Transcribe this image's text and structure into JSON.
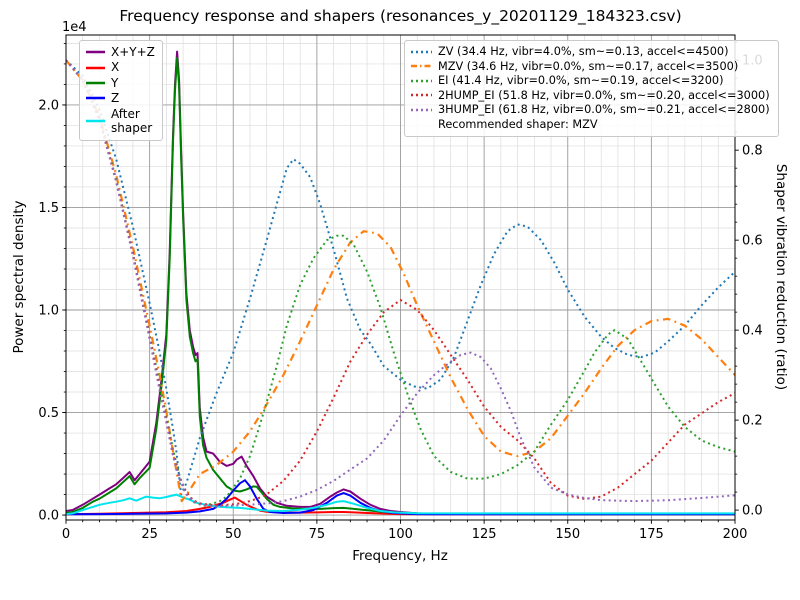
{
  "title": "Frequency response and shapers (resonances_y_20201129_184323.csv)",
  "chart_data": {
    "type": "line",
    "x_axis": {
      "label": "Frequency, Hz",
      "min": 0,
      "max": 200,
      "major_tick_step": 25,
      "minor_tick_step": 5,
      "major_tick_labels": [
        "0",
        "25",
        "50",
        "75",
        "100",
        "125",
        "150",
        "175",
        "200"
      ]
    },
    "y_left_axis": {
      "label": "Power spectral density",
      "scale_note": "1e4",
      "min": -0.024,
      "max": 2.341,
      "major_tick_step": 0.5,
      "minor_tick_step": 0.1,
      "major_tick_labels": [
        "0.0",
        "0.5",
        "1.0",
        "1.5",
        "2.0"
      ]
    },
    "y_right_axis": {
      "label": "Shaper vibration reduction (ratio)",
      "min": -0.022,
      "max": 1.056,
      "major_tick_step": 0.2,
      "minor_tick_step": 0.04,
      "major_tick_labels": [
        "0.0",
        "0.2",
        "0.4",
        "0.6",
        "0.8",
        "1.0"
      ]
    },
    "grid": {
      "major_color": "#9a9a9a",
      "minor_color": "#dcdcdc"
    },
    "recommended_shaper": "MZV",
    "psd_series": [
      {
        "name": "X+Y+Z",
        "color": "#800080",
        "style": "solid",
        "axis": "left",
        "x": [
          0,
          2,
          5,
          8,
          10,
          13,
          15,
          17,
          19,
          20.5,
          22,
          25,
          27,
          28.5,
          30,
          31,
          32,
          32.6,
          33.2,
          33.8,
          34.4,
          35,
          36,
          37,
          38,
          38.7,
          39.3,
          40,
          41,
          42,
          44,
          46,
          48,
          50,
          51,
          52.5,
          54,
          56,
          58,
          60,
          63,
          66,
          70,
          73,
          76,
          79,
          81,
          83,
          85,
          88,
          91,
          94,
          97,
          100,
          105,
          110,
          120,
          140,
          170,
          200
        ],
        "y": [
          0.02,
          0.025,
          0.05,
          0.08,
          0.1,
          0.13,
          0.15,
          0.18,
          0.21,
          0.17,
          0.2,
          0.26,
          0.45,
          0.65,
          0.88,
          1.28,
          1.85,
          2.1,
          2.26,
          2.12,
          1.78,
          1.48,
          1.08,
          0.9,
          0.82,
          0.78,
          0.79,
          0.52,
          0.38,
          0.31,
          0.3,
          0.26,
          0.24,
          0.25,
          0.27,
          0.285,
          0.24,
          0.19,
          0.13,
          0.09,
          0.06,
          0.045,
          0.04,
          0.04,
          0.055,
          0.09,
          0.11,
          0.125,
          0.115,
          0.08,
          0.05,
          0.03,
          0.02,
          0.015,
          0.008,
          0.006,
          0.005,
          0.005,
          0.005,
          0.005
        ]
      },
      {
        "name": "X",
        "color": "#ff0000",
        "style": "solid",
        "axis": "left",
        "x": [
          0,
          10,
          20,
          30,
          36,
          40,
          43,
          45,
          47,
          49,
          50.5,
          52,
          54,
          56,
          58,
          60,
          65,
          70,
          75,
          80,
          83,
          86,
          90,
          95,
          100,
          110,
          140,
          200
        ],
        "y": [
          0.004,
          0.006,
          0.01,
          0.014,
          0.02,
          0.03,
          0.04,
          0.05,
          0.06,
          0.075,
          0.085,
          0.07,
          0.05,
          0.035,
          0.022,
          0.016,
          0.012,
          0.012,
          0.013,
          0.015,
          0.015,
          0.013,
          0.01,
          0.007,
          0.005,
          0.004,
          0.004,
          0.004
        ]
      },
      {
        "name": "Y",
        "color": "#008000",
        "style": "solid",
        "axis": "left",
        "x": [
          0,
          2,
          5,
          8,
          10,
          13,
          15,
          17,
          19,
          20.5,
          22,
          25,
          27,
          28.5,
          30,
          31,
          32,
          32.6,
          33.2,
          33.8,
          34.4,
          35,
          36,
          37,
          38,
          38.7,
          39.3,
          40,
          41,
          42,
          44,
          46,
          48,
          50,
          52,
          54,
          56,
          57,
          58.5,
          60,
          62,
          64,
          68,
          72,
          76,
          80,
          83,
          86,
          90,
          95,
          100,
          110,
          140,
          200
        ],
        "y": [
          0.01,
          0.015,
          0.035,
          0.065,
          0.08,
          0.11,
          0.13,
          0.16,
          0.19,
          0.15,
          0.18,
          0.23,
          0.42,
          0.62,
          0.85,
          1.25,
          1.82,
          2.07,
          2.23,
          2.09,
          1.75,
          1.45,
          1.05,
          0.87,
          0.79,
          0.75,
          0.76,
          0.48,
          0.34,
          0.28,
          0.22,
          0.18,
          0.14,
          0.12,
          0.115,
          0.125,
          0.14,
          0.138,
          0.11,
          0.08,
          0.05,
          0.04,
          0.032,
          0.03,
          0.03,
          0.034,
          0.035,
          0.03,
          0.024,
          0.015,
          0.01,
          0.006,
          0.004,
          0.004
        ]
      },
      {
        "name": "Z",
        "color": "#0000ff",
        "style": "solid",
        "axis": "left",
        "x": [
          0,
          10,
          20,
          30,
          36,
          40,
          44,
          46,
          48,
          50,
          52,
          53.5,
          55,
          57,
          59,
          61,
          65,
          70,
          74,
          78,
          81,
          83,
          85,
          88,
          91,
          94,
          97,
          100,
          105,
          110,
          140,
          200
        ],
        "y": [
          0.004,
          0.005,
          0.006,
          0.008,
          0.012,
          0.018,
          0.03,
          0.05,
          0.08,
          0.12,
          0.155,
          0.17,
          0.14,
          0.08,
          0.03,
          0.015,
          0.01,
          0.012,
          0.025,
          0.06,
          0.095,
          0.107,
          0.095,
          0.06,
          0.035,
          0.02,
          0.012,
          0.008,
          0.005,
          0.004,
          0.004,
          0.004
        ]
      },
      {
        "name": "After shaper",
        "color": "#00e5ee",
        "style": "solid",
        "axis": "left",
        "x": [
          0,
          2,
          5,
          8,
          10,
          13,
          15,
          17,
          19,
          21,
          24,
          26,
          28,
          30,
          32,
          33,
          35,
          37,
          39,
          42,
          45,
          48,
          52,
          56,
          60,
          65,
          70,
          74,
          78,
          81,
          83,
          86,
          90,
          94,
          98,
          105,
          120,
          160,
          200
        ],
        "y": [
          0.005,
          0.008,
          0.025,
          0.04,
          0.05,
          0.06,
          0.065,
          0.072,
          0.082,
          0.07,
          0.09,
          0.085,
          0.082,
          0.088,
          0.096,
          0.1,
          0.085,
          0.075,
          0.06,
          0.05,
          0.042,
          0.038,
          0.035,
          0.028,
          0.022,
          0.02,
          0.026,
          0.035,
          0.05,
          0.065,
          0.068,
          0.055,
          0.035,
          0.02,
          0.013,
          0.009,
          0.008,
          0.008,
          0.008
        ]
      }
    ],
    "shaper_series": [
      {
        "name": "ZV",
        "color": "#1f77b4",
        "style": "dotted",
        "axis": "right",
        "x": [
          0,
          5,
          10,
          15,
          20,
          25,
          28,
          30,
          32,
          33,
          34.4,
          36,
          38,
          40,
          45,
          50,
          55,
          60,
          63,
          66,
          68,
          70,
          73,
          76,
          80,
          84,
          88,
          91,
          95,
          100,
          104,
          108,
          112,
          116,
          120,
          124,
          128,
          132,
          135,
          138,
          142,
          146,
          150,
          155,
          160,
          164,
          168,
          172,
          176,
          180,
          185,
          190,
          195,
          200
        ],
        "y": [
          1.0,
          0.965,
          0.89,
          0.78,
          0.63,
          0.46,
          0.35,
          0.27,
          0.18,
          0.13,
          0.035,
          0.06,
          0.11,
          0.16,
          0.26,
          0.35,
          0.47,
          0.6,
          0.68,
          0.76,
          0.78,
          0.77,
          0.74,
          0.68,
          0.58,
          0.47,
          0.4,
          0.37,
          0.32,
          0.29,
          0.275,
          0.27,
          0.29,
          0.34,
          0.42,
          0.5,
          0.57,
          0.62,
          0.635,
          0.63,
          0.6,
          0.55,
          0.49,
          0.43,
          0.385,
          0.36,
          0.345,
          0.34,
          0.35,
          0.375,
          0.41,
          0.455,
          0.495,
          0.53
        ]
      },
      {
        "name": "MZV",
        "color": "#ff7f0e",
        "style": "dashdot",
        "axis": "right",
        "x": [
          0,
          5,
          10,
          15,
          20,
          25,
          28,
          30,
          32,
          34.6,
          37,
          40,
          45,
          50,
          55,
          60,
          65,
          70,
          75,
          80,
          85,
          89,
          93,
          97,
          101,
          105,
          110,
          115,
          120,
          125,
          130,
          135,
          140,
          145,
          150,
          155,
          160,
          165,
          170,
          175,
          180,
          185,
          190,
          195,
          200
        ],
        "y": [
          1.0,
          0.955,
          0.875,
          0.745,
          0.585,
          0.41,
          0.3,
          0.22,
          0.13,
          0.02,
          0.045,
          0.08,
          0.1,
          0.13,
          0.175,
          0.235,
          0.3,
          0.375,
          0.455,
          0.535,
          0.595,
          0.62,
          0.615,
          0.585,
          0.525,
          0.455,
          0.375,
          0.295,
          0.225,
          0.165,
          0.13,
          0.12,
          0.13,
          0.16,
          0.21,
          0.26,
          0.315,
          0.365,
          0.4,
          0.42,
          0.425,
          0.41,
          0.38,
          0.34,
          0.3
        ]
      },
      {
        "name": "EI",
        "color": "#2ca02c",
        "style": "dotted",
        "axis": "right",
        "x": [
          0,
          5,
          10,
          15,
          20,
          25,
          28,
          30,
          32,
          34,
          36,
          38,
          41.4,
          44,
          46,
          48,
          50,
          52,
          55,
          58,
          60,
          63,
          66,
          70,
          74,
          78,
          81,
          83,
          86,
          90,
          94,
          98,
          102,
          106,
          110,
          115,
          120,
          125,
          130,
          135,
          140,
          145,
          150,
          155,
          158,
          162,
          164,
          168,
          172,
          176,
          180,
          185,
          190,
          195,
          200
        ],
        "y": [
          1.0,
          0.955,
          0.87,
          0.735,
          0.57,
          0.39,
          0.28,
          0.21,
          0.135,
          0.075,
          0.035,
          0.018,
          0.01,
          0.015,
          0.02,
          0.03,
          0.05,
          0.07,
          0.12,
          0.19,
          0.24,
          0.32,
          0.41,
          0.5,
          0.56,
          0.6,
          0.61,
          0.61,
          0.59,
          0.53,
          0.45,
          0.35,
          0.26,
          0.18,
          0.12,
          0.085,
          0.07,
          0.07,
          0.08,
          0.1,
          0.13,
          0.19,
          0.245,
          0.31,
          0.35,
          0.39,
          0.4,
          0.38,
          0.33,
          0.28,
          0.23,
          0.185,
          0.155,
          0.14,
          0.13
        ]
      },
      {
        "name": "2HUMP_EI",
        "color": "#d62728",
        "style": "dotted",
        "axis": "right",
        "x": [
          0,
          5,
          10,
          15,
          20,
          25,
          28,
          30,
          32,
          34,
          36,
          38,
          40,
          45,
          50,
          51.8,
          55,
          58,
          60,
          65,
          70,
          75,
          80,
          85,
          90,
          95,
          100,
          105,
          110,
          115,
          120,
          125,
          130,
          135,
          140,
          145,
          150,
          155,
          160,
          165,
          170,
          175,
          180,
          185,
          190,
          195,
          200
        ],
        "y": [
          1.0,
          0.955,
          0.87,
          0.73,
          0.57,
          0.385,
          0.27,
          0.2,
          0.125,
          0.07,
          0.04,
          0.022,
          0.015,
          0.01,
          0.013,
          0.015,
          0.02,
          0.028,
          0.035,
          0.065,
          0.11,
          0.175,
          0.25,
          0.33,
          0.39,
          0.44,
          0.467,
          0.445,
          0.4,
          0.345,
          0.29,
          0.23,
          0.185,
          0.155,
          0.115,
          0.06,
          0.032,
          0.025,
          0.03,
          0.05,
          0.08,
          0.11,
          0.15,
          0.19,
          0.215,
          0.24,
          0.26
        ]
      },
      {
        "name": "3HUMP_EI",
        "color": "#9467bd",
        "style": "dotted",
        "axis": "right",
        "x": [
          0,
          5,
          10,
          15,
          20,
          25,
          28,
          30,
          32,
          34,
          36,
          38,
          40,
          45,
          50,
          55,
          60,
          61.8,
          65,
          70,
          75,
          80,
          85,
          90,
          95,
          100,
          105,
          110,
          115,
          118,
          121,
          124,
          127,
          130,
          133,
          136,
          140,
          145,
          150,
          155,
          160,
          170,
          180,
          190,
          200
        ],
        "y": [
          1.0,
          0.955,
          0.865,
          0.73,
          0.565,
          0.38,
          0.265,
          0.195,
          0.12,
          0.068,
          0.035,
          0.02,
          0.013,
          0.008,
          0.01,
          0.012,
          0.015,
          0.016,
          0.02,
          0.03,
          0.045,
          0.065,
          0.09,
          0.115,
          0.155,
          0.21,
          0.26,
          0.3,
          0.33,
          0.345,
          0.35,
          0.34,
          0.315,
          0.27,
          0.22,
          0.16,
          0.095,
          0.05,
          0.035,
          0.027,
          0.022,
          0.02,
          0.022,
          0.027,
          0.033
        ]
      }
    ]
  },
  "legend_left": {
    "items": [
      {
        "label": "X+Y+Z",
        "color": "#800080",
        "style": "solid"
      },
      {
        "label": "X",
        "color": "#ff0000",
        "style": "solid"
      },
      {
        "label": "Y",
        "color": "#008000",
        "style": "solid"
      },
      {
        "label": "Z",
        "color": "#0000ff",
        "style": "solid"
      },
      {
        "label": "After\nshaper",
        "color": "#00e5ee",
        "style": "solid"
      }
    ]
  },
  "legend_right": {
    "items": [
      {
        "label": "ZV (34.4 Hz, vibr=4.0%, sm~=0.13, accel<=4500)",
        "color": "#1f77b4",
        "style": "dotted"
      },
      {
        "label": "MZV (34.6 Hz, vibr=0.0%, sm~=0.17, accel<=3500)",
        "color": "#ff7f0e",
        "style": "dashdot"
      },
      {
        "label": "EI (41.4 Hz, vibr=0.0%, sm~=0.19, accel<=3200)",
        "color": "#2ca02c",
        "style": "dotted"
      },
      {
        "label": "2HUMP_EI (51.8 Hz, vibr=0.0%, sm~=0.20, accel<=3000)",
        "color": "#d62728",
        "style": "dotted"
      },
      {
        "label": "3HUMP_EI (61.8 Hz, vibr=0.0%, sm~=0.21, accel<=2800)",
        "color": "#9467bd",
        "style": "dotted"
      },
      {
        "label": "Recommended shaper: MZV",
        "color": "none",
        "style": "none"
      }
    ]
  }
}
